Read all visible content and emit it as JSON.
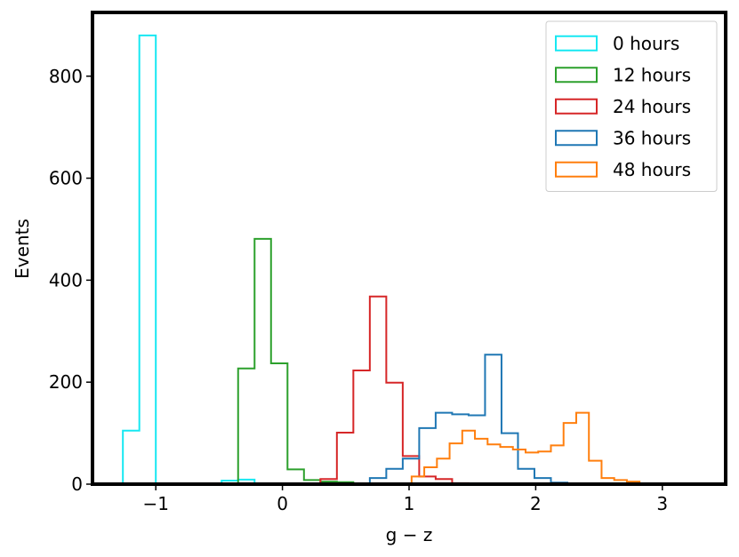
{
  "chart_data": {
    "type": "histogram",
    "xlabel": "g − z",
    "ylabel": "Events",
    "xlim": [
      -1.5,
      3.5
    ],
    "ylim": [
      0,
      925
    ],
    "xticks": [
      {
        "value": -1,
        "label": "−1"
      },
      {
        "value": 0,
        "label": "0"
      },
      {
        "value": 1,
        "label": "1"
      },
      {
        "value": 2,
        "label": "2"
      },
      {
        "value": 3,
        "label": "3"
      }
    ],
    "yticks": [
      {
        "value": 0,
        "label": "0"
      },
      {
        "value": 200,
        "label": "200"
      },
      {
        "value": 400,
        "label": "400"
      },
      {
        "value": 600,
        "label": "600"
      },
      {
        "value": 800,
        "label": "800"
      }
    ],
    "grid": false,
    "legend_position": "upper right",
    "series": [
      {
        "name": "0 hours",
        "color": "#17e8f2",
        "bin_edges": [
          -1.26,
          -1.13,
          -1.0,
          -0.87,
          -0.74,
          -0.61,
          -0.48,
          -0.35,
          -0.22
        ],
        "counts": [
          105,
          880,
          0,
          0,
          0,
          0,
          7,
          9
        ]
      },
      {
        "name": "12 hours",
        "color": "#2ca02c",
        "bin_edges": [
          -0.35,
          -0.22,
          -0.09,
          0.04,
          0.17,
          0.3,
          0.43,
          0.56
        ],
        "counts": [
          227,
          481,
          237,
          29,
          8,
          5,
          4
        ]
      },
      {
        "name": "24 hours",
        "color": "#d62728",
        "bin_edges": [
          0.3,
          0.43,
          0.56,
          0.69,
          0.82,
          0.95,
          1.08,
          1.21,
          1.34,
          1.47
        ],
        "counts": [
          10,
          101,
          223,
          368,
          199,
          55,
          15,
          10,
          2
        ]
      },
      {
        "name": "36 hours",
        "color": "#1f77b4",
        "bin_edges": [
          0.69,
          0.82,
          0.95,
          1.08,
          1.21,
          1.34,
          1.47,
          1.6,
          1.73,
          1.86,
          1.99,
          2.12,
          2.25
        ],
        "counts": [
          12,
          30,
          50,
          110,
          140,
          137,
          135,
          254,
          100,
          30,
          12,
          3
        ]
      },
      {
        "name": "48 hours",
        "color": "#ff7f0e",
        "bin_edges": [
          1.02,
          1.12,
          1.22,
          1.32,
          1.42,
          1.52,
          1.62,
          1.72,
          1.82,
          1.92,
          2.02,
          2.12,
          2.22,
          2.32,
          2.42,
          2.52,
          2.62,
          2.72,
          2.82
        ],
        "counts": [
          15,
          33,
          50,
          80,
          105,
          89,
          78,
          73,
          68,
          62,
          64,
          76,
          120,
          140,
          46,
          12,
          8,
          5
        ]
      }
    ]
  }
}
